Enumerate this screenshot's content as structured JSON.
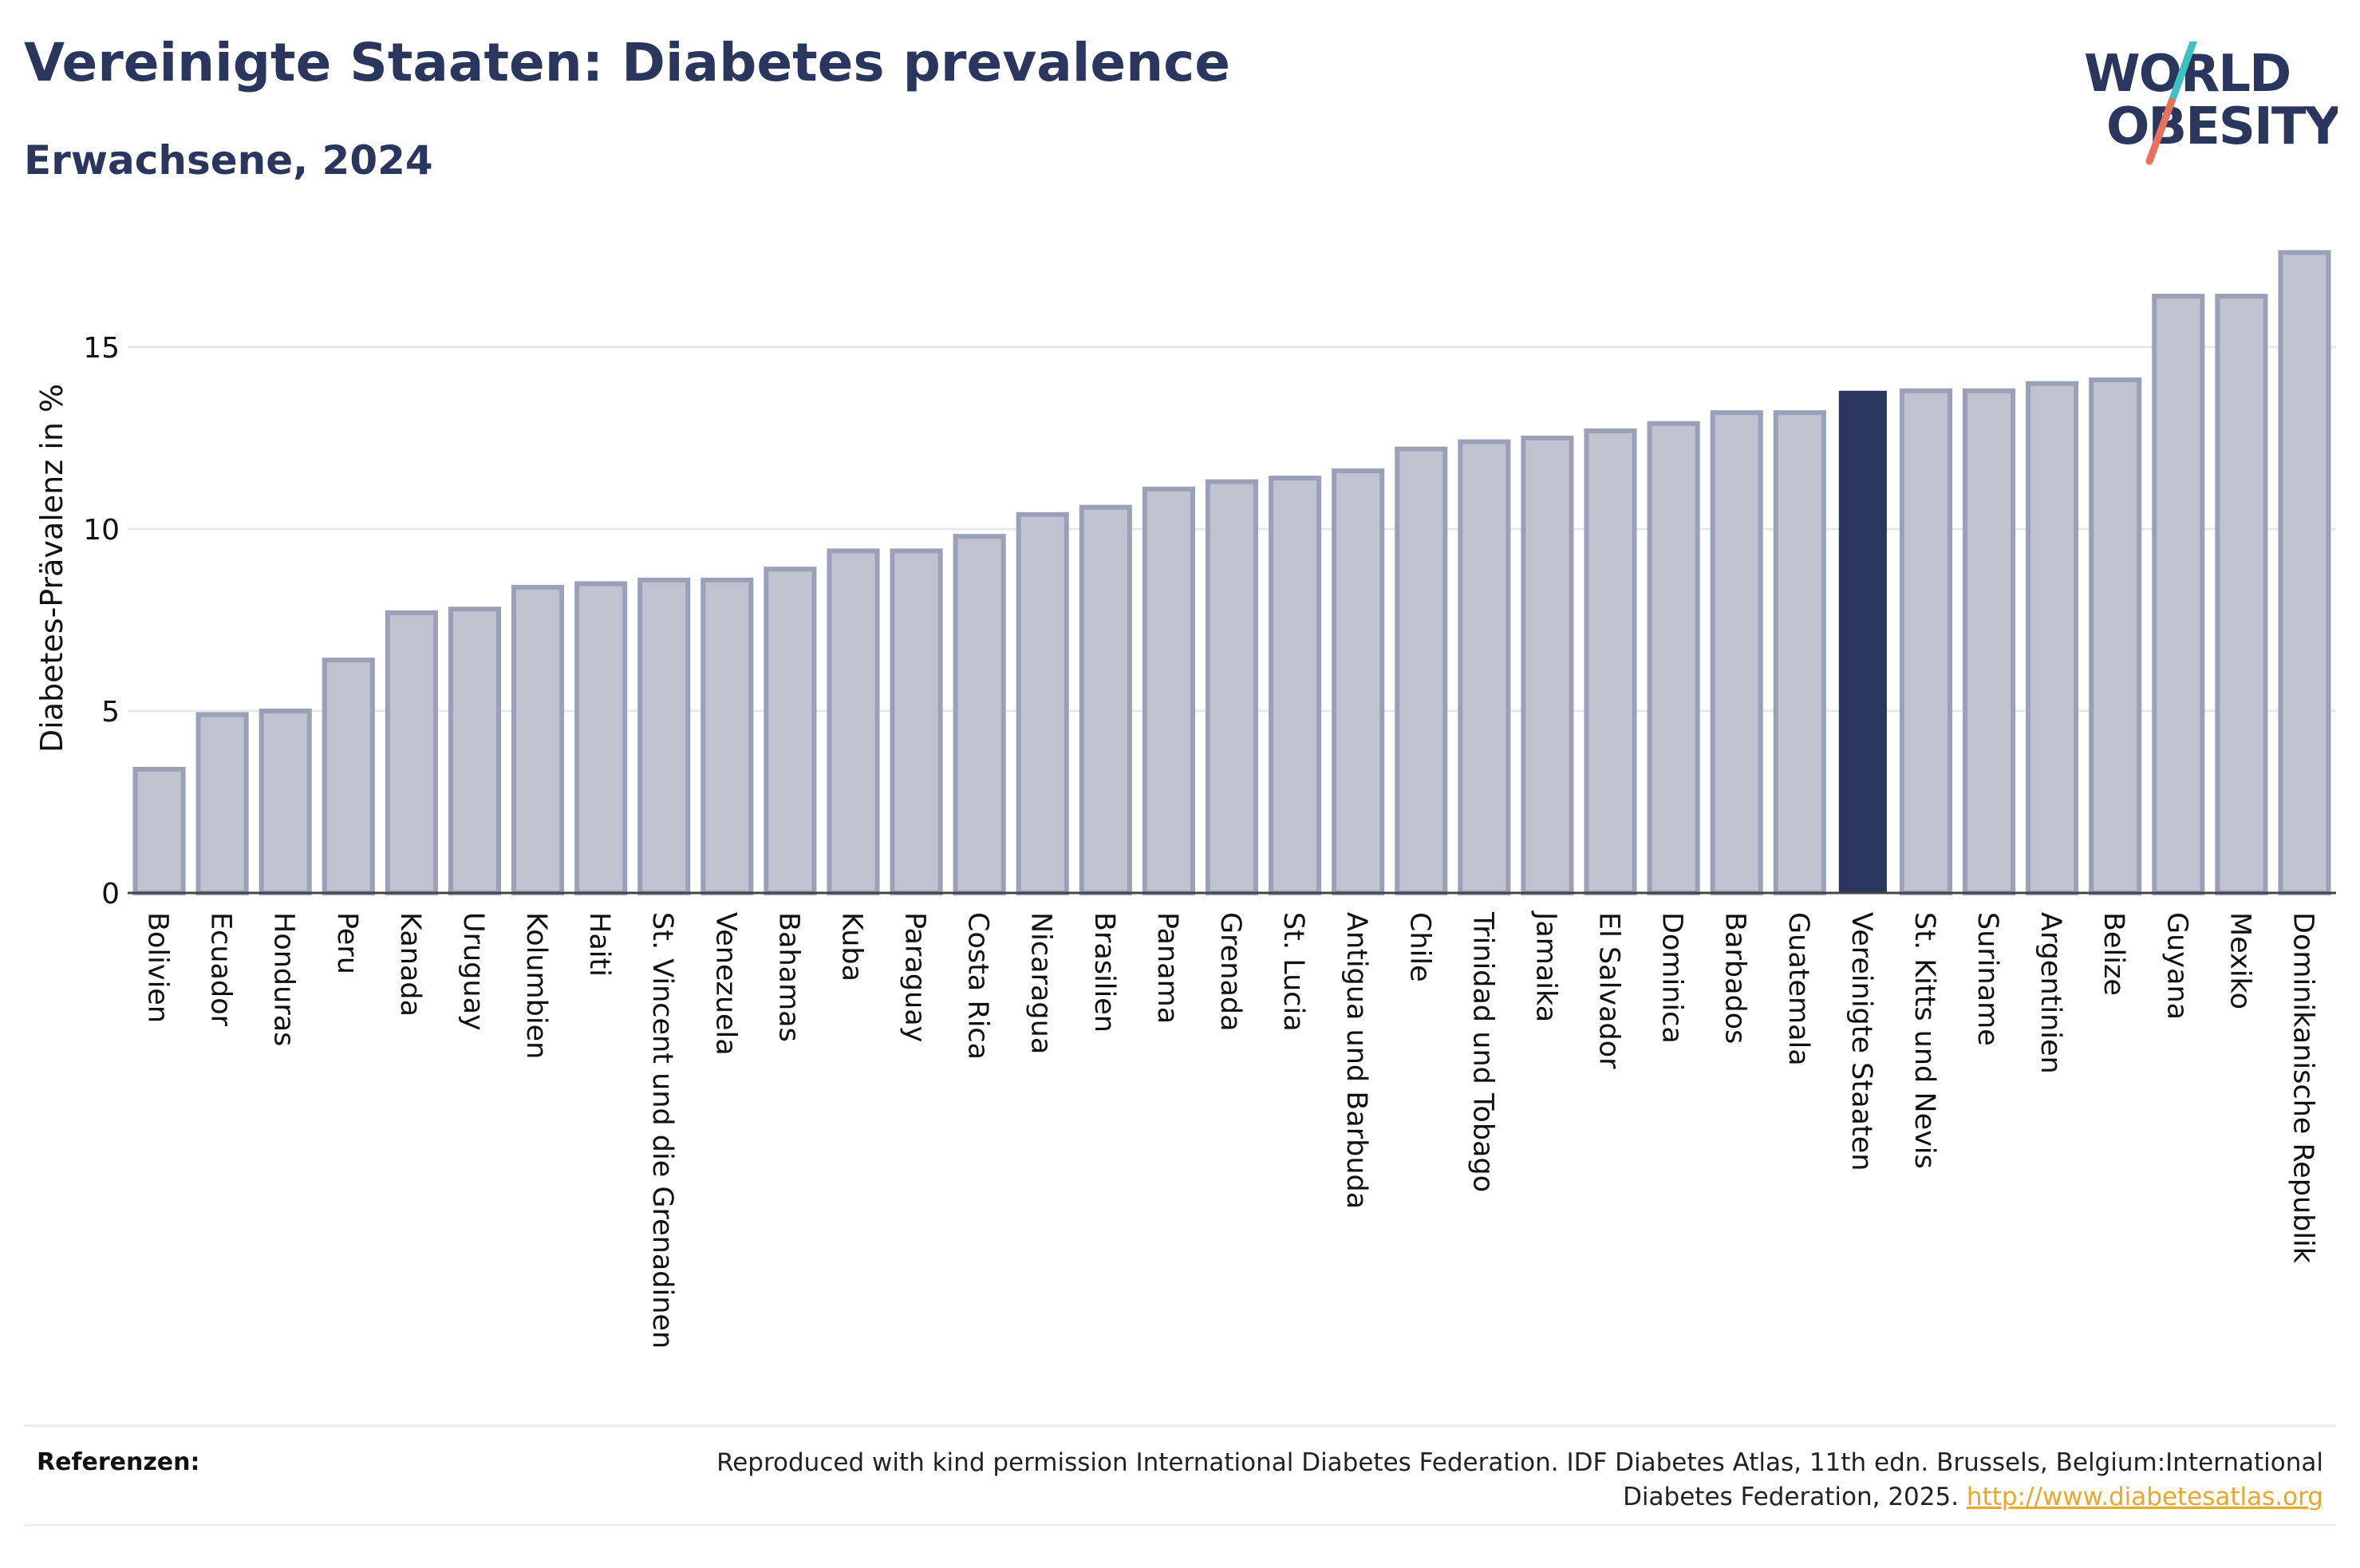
{
  "header": {
    "title": "Vereinigte Staaten: Diabetes prevalence",
    "subtitle": "Erwachsene, 2024"
  },
  "logo": {
    "line1": "WORLD",
    "line2": "OBESITY"
  },
  "colors": {
    "highlight_bar": "#2b365f",
    "bar_fill": "#bfc2cf",
    "bar_stroke": "#9aa0b8",
    "accent_teal": "#3ec1c0",
    "accent_coral": "#e9705a"
  },
  "chart_data": {
    "type": "bar",
    "ylabel": "Diabetes-Prävalenz in %",
    "ylim": [
      0,
      18
    ],
    "yticks": [
      0,
      5,
      10,
      15
    ],
    "grid": true,
    "highlight": "Vereinigte Staaten",
    "categories": [
      "Bolivien",
      "Ecuador",
      "Honduras",
      "Peru",
      "Kanada",
      "Uruguay",
      "Kolumbien",
      "Haiti",
      "St. Vincent und die Grenadinen",
      "Venezuela",
      "Bahamas",
      "Kuba",
      "Paraguay",
      "Costa Rica",
      "Nicaragua",
      "Brasilien",
      "Panama",
      "Grenada",
      "St. Lucia",
      "Antigua und Barbuda",
      "Chile",
      "Trinidad und Tobago",
      "Jamaika",
      "El Salvador",
      "Dominica",
      "Barbados",
      "Guatemala",
      "Vereinigte Staaten",
      "St. Kitts und Nevis",
      "Suriname",
      "Argentinien",
      "Belize",
      "Guyana",
      "Mexiko",
      "Dominikanische Republik"
    ],
    "values": [
      3.4,
      4.9,
      5.0,
      6.4,
      7.7,
      7.8,
      8.4,
      8.5,
      8.6,
      8.6,
      8.9,
      9.4,
      9.4,
      9.8,
      10.4,
      10.6,
      11.1,
      11.3,
      11.4,
      11.6,
      12.2,
      12.4,
      12.5,
      12.7,
      12.9,
      13.2,
      13.2,
      13.8,
      13.8,
      13.8,
      14.0,
      14.1,
      16.4,
      16.4,
      17.6
    ]
  },
  "references": {
    "label": "Referenzen:",
    "text": "Reproduced with kind permission International Diabetes Federation. IDF Diabetes Atlas, 11th edn. Brussels, Belgium:International Diabetes Federation, 2025.",
    "link": "http://www.diabetesatlas.org"
  }
}
